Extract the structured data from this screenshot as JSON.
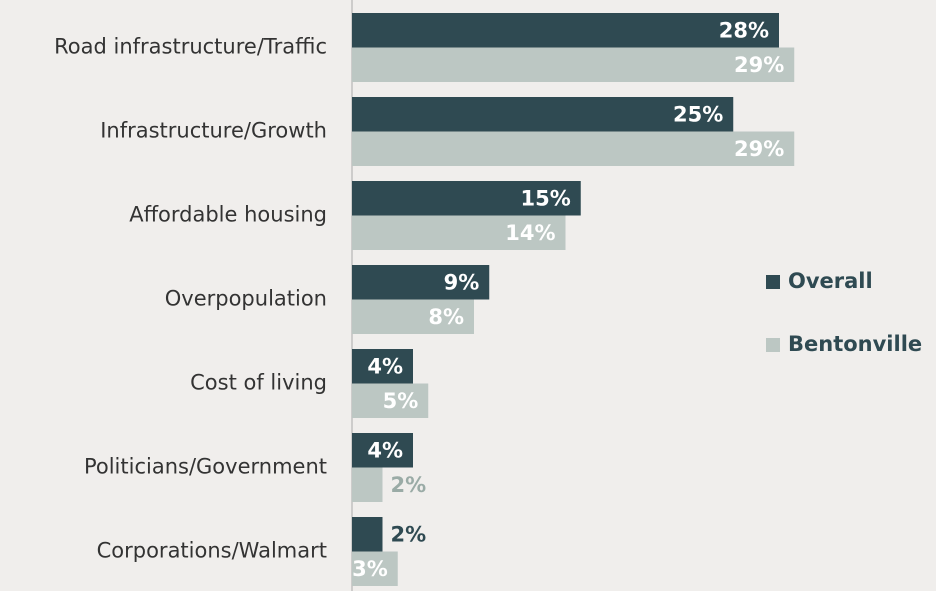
{
  "chart_data": {
    "type": "bar",
    "orientation": "horizontal",
    "categories": [
      "Road infrastructure/Traffic",
      "Infrastructure/Growth",
      "Affordable housing",
      "Overpopulation",
      "Cost of living",
      "Politicians/Government",
      "Corporations/Walmart"
    ],
    "series": [
      {
        "name": "Overall",
        "color": "#2f4a52",
        "values": [
          28,
          25,
          15,
          9,
          4,
          4,
          2
        ],
        "value_labels": [
          "28%",
          "25%",
          "15%",
          "9%",
          "4%",
          "4%",
          "2%"
        ]
      },
      {
        "name": "Bentonville",
        "color": "#bcc7c3",
        "values": [
          29,
          29,
          14,
          8,
          5,
          2,
          3
        ],
        "value_labels": [
          "29%",
          "29%",
          "14%",
          "8%",
          "5%",
          "2%",
          "3%"
        ]
      }
    ],
    "legend": "right"
  }
}
